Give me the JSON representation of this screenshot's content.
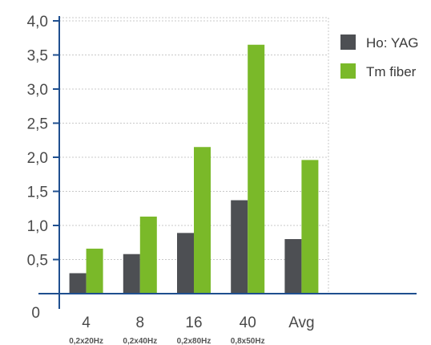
{
  "chart_data": {
    "type": "bar",
    "title": "",
    "xlabel": "",
    "ylabel": "",
    "ylim": [
      0,
      4.0
    ],
    "y_ticks": [
      "0",
      "0,5",
      "1,0",
      "1,5",
      "2,0",
      "2,5",
      "3,0",
      "3,5",
      "4,0"
    ],
    "categories": [
      "4",
      "8",
      "16",
      "40",
      "Avg"
    ],
    "category_sublabels": [
      "0,2x20Hz",
      "0,2x40Hz",
      "0,2x80Hz",
      "0,8x50Hz",
      ""
    ],
    "series": [
      {
        "name": "Ho: YAG",
        "color": "#4d4f53",
        "values": [
          0.3,
          0.58,
          0.89,
          1.37,
          0.8
        ]
      },
      {
        "name": "Tm fiber",
        "color": "#7ab929",
        "values": [
          0.66,
          1.13,
          2.15,
          3.65,
          1.96
        ]
      }
    ],
    "grid": true,
    "legend_position": "right"
  }
}
